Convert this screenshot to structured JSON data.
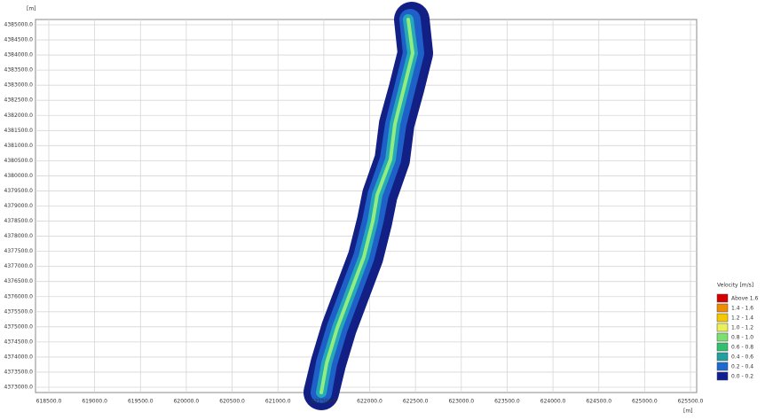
{
  "map": {
    "y_unit": "[m]",
    "x_unit": "[m]",
    "y_labels": [
      "4385000.0",
      "4384500.0",
      "4384000.0",
      "4383500.0",
      "4383000.0",
      "4382500.0",
      "4382000.0",
      "4381500.0",
      "4381000.0",
      "4380500.0",
      "4380000.0",
      "4379500.0",
      "4379000.0",
      "4378500.0",
      "4378000.0",
      "4377500.0",
      "4377000.0",
      "4376500.0",
      "4376000.0",
      "4375500.0",
      "4375000.0",
      "4374500.0",
      "4374000.0",
      "4373500.0",
      "4373000.0"
    ],
    "x_labels": [
      "618500.0",
      "619000.0",
      "619500.0",
      "620000.0",
      "620500.0",
      "621000.0",
      "621500.0",
      "622000.0",
      "622500.0",
      "623000.0",
      "623500.0",
      "624000.0",
      "624500.0",
      "625000.0",
      "625500.0"
    ],
    "legend": {
      "title": "Velocity [m/s]",
      "items": [
        {
          "label": "Above 1.6",
          "color": "#d40000"
        },
        {
          "label": "1.4 - 1.6",
          "color": "#f08c00"
        },
        {
          "label": "1.2 - 1.4",
          "color": "#f5c800"
        },
        {
          "label": "1.0 - 1.2",
          "color": "#e8f05a"
        },
        {
          "label": "0.8 - 1.0",
          "color": "#7ce070"
        },
        {
          "label": "0.6 - 0.8",
          "color": "#30c070"
        },
        {
          "label": "0.4 - 0.6",
          "color": "#20a0a0"
        },
        {
          "label": "0.2 - 0.4",
          "color": "#1e6ad0"
        },
        {
          "label": "0.0 - 0.2",
          "color": "#102090"
        }
      ]
    }
  }
}
